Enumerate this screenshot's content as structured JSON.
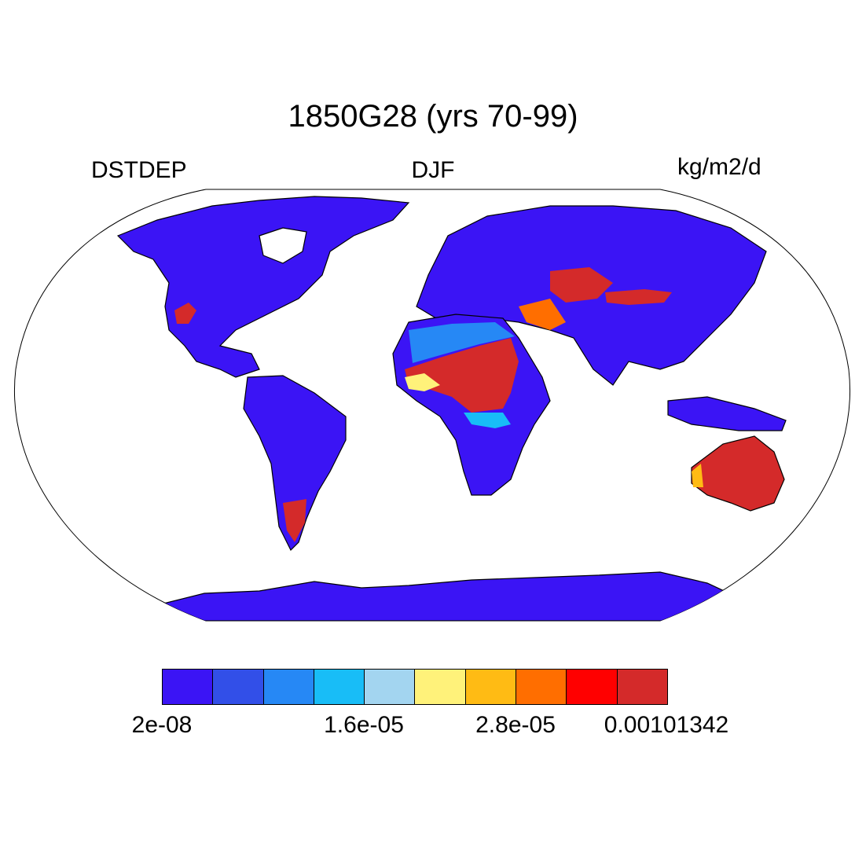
{
  "title": "1850G28 (yrs 70-99)",
  "left_label": "DSTDEP",
  "center_label": "DJF",
  "right_label": "kg/m2/d",
  "colors": {
    "land_low": "#3b14f5",
    "ocean": "#ffffff",
    "coast": "#000000"
  },
  "colorbar": {
    "colors": [
      "#3b14f5",
      "#324fe8",
      "#2688f5",
      "#18bdf7",
      "#a3d5f0",
      "#fff27a",
      "#ffbb14",
      "#ff6e00",
      "#ff0000",
      "#d42a2a"
    ],
    "tick_labels": [
      "2e-08",
      "1.6e-05",
      "2.8e-05",
      "0.00101342"
    ]
  },
  "chart_data": {
    "type": "heatmap",
    "projection": "Robinson",
    "variable": "DSTDEP",
    "season": "DJF",
    "units": "kg/m2/d",
    "title": "1850G28 (yrs 70-99)",
    "scale_min": "2e-08",
    "scale_max": "0.00101342",
    "high_deposition_regions": [
      "Sahara",
      "Sahel",
      "Arabian Peninsula",
      "Central Asia",
      "Taklamakan/Gobi",
      "Australia",
      "Patagonia",
      "Southwestern North America"
    ]
  }
}
